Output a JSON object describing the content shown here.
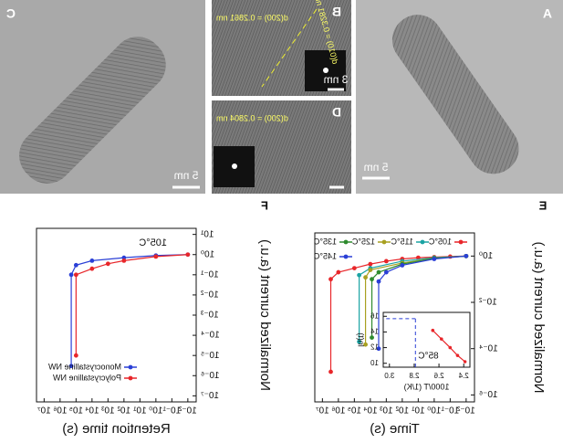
{
  "images": {
    "A": {
      "label": "A",
      "scale": "5 nm"
    },
    "B": {
      "label": "B",
      "scale": "3 nm",
      "d1": "d(200) = 0.2861 nm",
      "d2": "d(010) = 0.3281 nm"
    },
    "C": {
      "label": "C",
      "scale": "5 nm"
    },
    "D": {
      "label": "D",
      "d1": "d(200) = 0.2804 nm"
    }
  },
  "chart_data": [
    {
      "type": "line",
      "panel": "E",
      "xlabel": "Time (s)",
      "ylabel": "Normalized current (a.u.)",
      "xlog": true,
      "ylog": true,
      "xlim": [
        0.003,
        30000000
      ],
      "ylim": [
        5e-07,
        10
      ],
      "xticks": [
        {
          "value": 0.01,
          "label": "10⁻²"
        },
        {
          "value": 0.1,
          "label": "10⁻¹"
        },
        {
          "value": 1,
          "label": "10⁰"
        },
        {
          "value": 10,
          "label": "10¹"
        },
        {
          "value": 100,
          "label": "10²"
        },
        {
          "value": 1000,
          "label": "10³"
        },
        {
          "value": 10000,
          "label": "10⁴"
        },
        {
          "value": 100000,
          "label": "10⁵"
        },
        {
          "value": 1000000,
          "label": "10⁶"
        },
        {
          "value": 10000000,
          "label": "10⁷"
        }
      ],
      "yticks": [
        {
          "value": 1,
          "label": "10⁰"
        },
        {
          "value": 0.01,
          "label": "10⁻²"
        },
        {
          "value": 0.0001,
          "label": "10⁻⁴"
        },
        {
          "value": 1e-06,
          "label": "10⁻⁶"
        }
      ],
      "series": [
        {
          "name": "105°C",
          "color": "#e8262a",
          "x": [
            0.01,
            0.1,
            1,
            10,
            100,
            1000,
            10000,
            100000,
            1000000,
            3000000,
            3000000
          ],
          "values": [
            1,
            0.95,
            0.9,
            0.85,
            0.75,
            0.6,
            0.45,
            0.3,
            0.2,
            0.1,
            1e-05
          ]
        },
        {
          "name": "115°C",
          "color": "#1aa3a3",
          "x": [
            0.01,
            1,
            100,
            10000,
            50000,
            50000
          ],
          "values": [
            1,
            0.85,
            0.6,
            0.3,
            0.15,
            0.0002
          ]
        },
        {
          "name": "125°C",
          "color": "#a8a020",
          "x": [
            0.01,
            1,
            100,
            10000,
            20000,
            20000
          ],
          "values": [
            1,
            0.8,
            0.5,
            0.25,
            0.12,
            0.00015
          ]
        },
        {
          "name": "135°C",
          "color": "#2e8b2e",
          "x": [
            0.01,
            1,
            100,
            3000,
            8000,
            8000
          ],
          "values": [
            1,
            0.8,
            0.45,
            0.2,
            0.1,
            0.0003
          ]
        },
        {
          "name": "145°C",
          "color": "#2a3fd6",
          "x": [
            0.01,
            1,
            100,
            1000,
            3000,
            3000
          ],
          "values": [
            1,
            0.75,
            0.4,
            0.2,
            0.08,
            0.0001
          ]
        }
      ]
    },
    {
      "type": "line",
      "panel": "F",
      "xlabel": "Retention time (s)",
      "ylabel": "Normalized current (a.u.)",
      "annotation": "105°C",
      "xlog": true,
      "ylog": true,
      "xlim": [
        0.003,
        30000000
      ],
      "ylim": [
        5e-08,
        20
      ],
      "xticks": [
        {
          "value": 0.01,
          "label": "10⁻²"
        },
        {
          "value": 0.1,
          "label": "10⁻¹"
        },
        {
          "value": 1,
          "label": "10⁰"
        },
        {
          "value": 10,
          "label": "10¹"
        },
        {
          "value": 100,
          "label": "10²"
        },
        {
          "value": 1000,
          "label": "10³"
        },
        {
          "value": 10000,
          "label": "10⁴"
        },
        {
          "value": 100000,
          "label": "10⁵"
        },
        {
          "value": 1000000,
          "label": "10⁶"
        },
        {
          "value": 10000000,
          "label": "10⁷"
        }
      ],
      "yticks": [
        {
          "value": 10,
          "label": "10¹"
        },
        {
          "value": 1,
          "label": "10⁰"
        },
        {
          "value": 0.1,
          "label": "10⁻¹"
        },
        {
          "value": 0.01,
          "label": "10⁻²"
        },
        {
          "value": 0.001,
          "label": "10⁻³"
        },
        {
          "value": 0.0001,
          "label": "10⁻⁴"
        },
        {
          "value": 1e-05,
          "label": "10⁻⁵"
        },
        {
          "value": 1e-06,
          "label": "10⁻⁶"
        },
        {
          "value": 1e-07,
          "label": "10⁻⁷"
        }
      ],
      "series": [
        {
          "name": "Monocrystalline NW",
          "color": "#2a3fd6",
          "x": [
            0.01,
            1,
            100,
            10000,
            100000,
            200000,
            200000
          ],
          "values": [
            1,
            0.9,
            0.7,
            0.5,
            0.3,
            0.1,
            3e-06
          ]
        },
        {
          "name": "Polycrystalline NW",
          "color": "#e8262a",
          "x": [
            0.01,
            1,
            100,
            1000,
            10000,
            100000,
            100000
          ],
          "values": [
            1,
            0.8,
            0.5,
            0.35,
            0.2,
            0.1,
            1e-05
          ]
        }
      ]
    },
    {
      "type": "line",
      "panel": "inset",
      "xlabel": "1000/T (1/K)",
      "ylabel": "ln(t)",
      "xlim": [
        2.35,
        3.05
      ],
      "ylim": [
        9.5,
        16.5
      ],
      "xticks": [
        2.4,
        2.6,
        2.8,
        {
          "value": 3,
          "label": "3.0"
        }
      ],
      "yticks": [
        10,
        12,
        14,
        16
      ],
      "series": [
        {
          "color": "#e8262a",
          "x": [
            2.39,
            2.45,
            2.51,
            2.58,
            2.65
          ],
          "values": [
            10.2,
            11.0,
            12.0,
            13.1,
            14.2
          ]
        }
      ],
      "reference": {
        "x": 2.79,
        "y": 15.7,
        "label": "85°C"
      }
    }
  ]
}
